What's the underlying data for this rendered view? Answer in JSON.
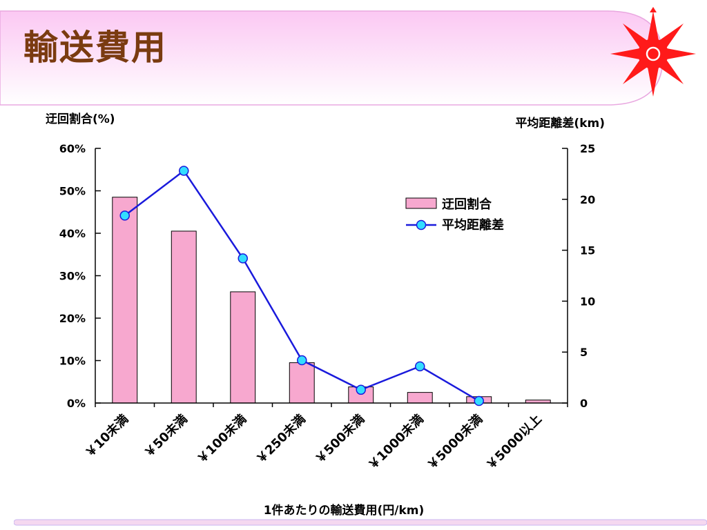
{
  "slide": {
    "title": "輸送費用",
    "colors": {
      "title": "#7a3b10",
      "band": "#fad2f5",
      "emblem": "#ff1a1a"
    },
    "emblem_icon": "compass-star-icon"
  },
  "chart_data": {
    "type": "bar",
    "title": "",
    "xlabel": "1件あたりの輸送費用(円/km)",
    "ylabel": "迂回割合(%)",
    "y2label": "平均距離差(km)",
    "categories": [
      "￥10未満",
      "￥50未満",
      "￥100未満",
      "￥250未満",
      "￥500未満",
      "￥1000未満",
      "￥5000未満",
      "￥5000以上"
    ],
    "ylim": [
      0,
      60
    ],
    "y_ticks": [
      "0%",
      "10%",
      "20%",
      "30%",
      "40%",
      "50%",
      "60%"
    ],
    "y2lim": [
      0,
      25
    ],
    "y2_ticks": [
      "0",
      "5",
      "10",
      "15",
      "20",
      "25"
    ],
    "legend_position": "upper-right",
    "series": [
      {
        "name": "迂回割合",
        "type": "bar",
        "axis": "left",
        "color": "#f7a8cf",
        "values": [
          48.5,
          40.5,
          26.2,
          9.5,
          3.8,
          2.5,
          1.5,
          0.7
        ]
      },
      {
        "name": "平均距離差",
        "type": "line",
        "axis": "right",
        "color": "#1a1adc",
        "marker_color": "#33ddff",
        "values": [
          18.4,
          22.8,
          14.2,
          4.2,
          1.3,
          3.6,
          0.2,
          null
        ]
      }
    ],
    "grid": false
  }
}
